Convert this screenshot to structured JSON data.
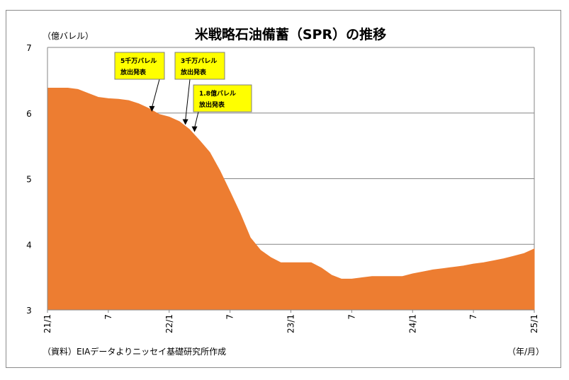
{
  "chart_data": {
    "type": "area",
    "title": "米戦略石油備蓄（SPR）の推移",
    "ylabel": "（億バレル）",
    "xlabel": "（年/月）",
    "source": "（資料）EIAデータよりニッセイ基礎研究所作成",
    "ylim": [
      3,
      7
    ],
    "yticks": [
      "3",
      "4",
      "5",
      "6",
      "7"
    ],
    "xlim": [
      0,
      48
    ],
    "xticks": [
      {
        "pos": 0,
        "label": "21/1"
      },
      {
        "pos": 6,
        "label": "7"
      },
      {
        "pos": 12,
        "label": "22/1"
      },
      {
        "pos": 18,
        "label": "7"
      },
      {
        "pos": 24,
        "label": "23/1"
      },
      {
        "pos": 30,
        "label": "7"
      },
      {
        "pos": 36,
        "label": "24/1"
      },
      {
        "pos": 42,
        "label": "7"
      },
      {
        "pos": 48,
        "label": "25/1"
      }
    ],
    "grid": true,
    "color": "#ed7d31",
    "series": [
      {
        "x": [
          0,
          1,
          2,
          3,
          4,
          5,
          6,
          7,
          8,
          9,
          10,
          11,
          12,
          13,
          14,
          15,
          16,
          17,
          18,
          19,
          20,
          21,
          22,
          23,
          24,
          25,
          26,
          27,
          28,
          29,
          30,
          31,
          32,
          33,
          34,
          35,
          36,
          37,
          38,
          39,
          40,
          41,
          42,
          43,
          44,
          45,
          46,
          47,
          48
        ],
        "values": [
          6.38,
          6.38,
          6.38,
          6.36,
          6.3,
          6.24,
          6.22,
          6.21,
          6.19,
          6.14,
          6.07,
          5.98,
          5.94,
          5.87,
          5.75,
          5.58,
          5.4,
          5.12,
          4.8,
          4.47,
          4.1,
          3.91,
          3.8,
          3.72,
          3.72,
          3.72,
          3.72,
          3.64,
          3.53,
          3.47,
          3.47,
          3.49,
          3.51,
          3.51,
          3.51,
          3.51,
          3.55,
          3.58,
          3.61,
          3.63,
          3.65,
          3.67,
          3.7,
          3.72,
          3.75,
          3.78,
          3.82,
          3.86,
          3.93
        ]
      }
    ],
    "annotations": [
      {
        "line1": "5千万バレル",
        "line2": "放出発表",
        "x": 10.3,
        "y": 6.02
      },
      {
        "line1": "3千万バレル",
        "line2": "放出発表",
        "x": 13.6,
        "y": 5.82
      },
      {
        "line1": "1.8億バレル",
        "line2": "放出発表",
        "x": 14.5,
        "y": 5.71
      }
    ]
  }
}
